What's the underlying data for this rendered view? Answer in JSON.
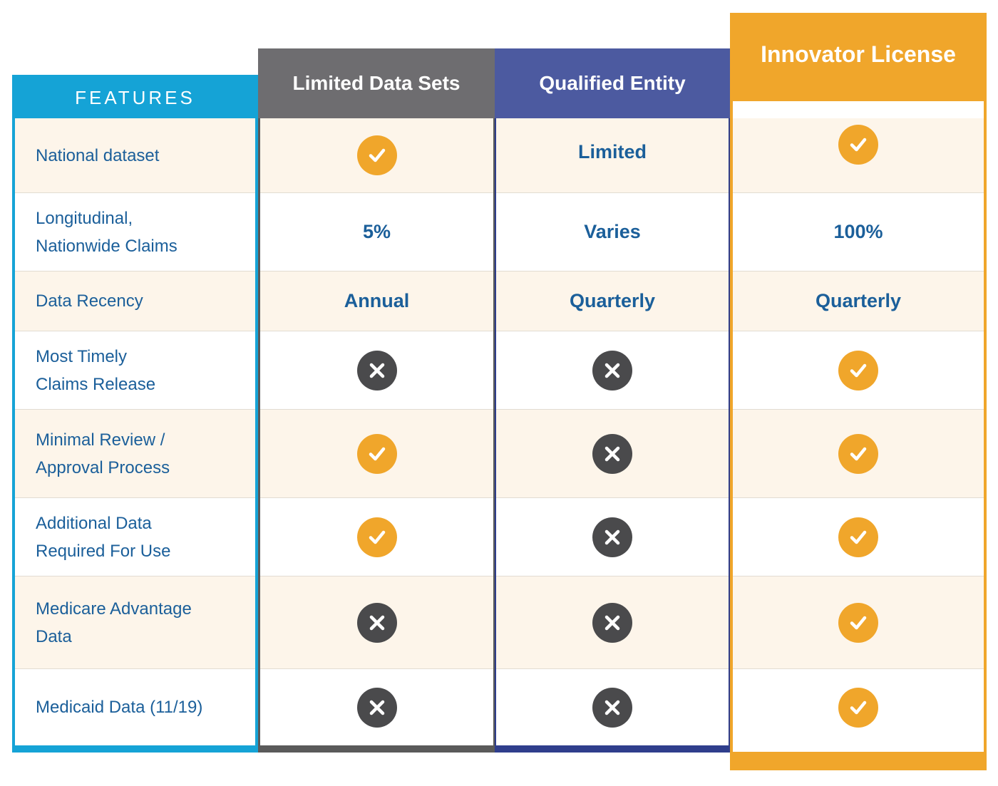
{
  "columns": {
    "features": "FEATURES",
    "limited_data_sets": "Limited Data Sets",
    "qualified_entity": "Qualified Entity",
    "innovator_license": "Innovator License"
  },
  "rows": [
    {
      "feature": "National dataset",
      "lds": "check",
      "qe": "Limited",
      "il": "check"
    },
    {
      "feature": "Longitudinal,\nNationwide Claims",
      "lds": "5%",
      "qe": "Varies",
      "il": "100%"
    },
    {
      "feature": "Data Recency",
      "lds": "Annual",
      "qe": "Quarterly",
      "il": "Quarterly"
    },
    {
      "feature": "Most Timely\nClaims Release",
      "lds": "cross",
      "qe": "cross",
      "il": "check"
    },
    {
      "feature": "Minimal Review /\nApproval Process",
      "lds": "check",
      "qe": "cross",
      "il": "check"
    },
    {
      "feature": "Additional Data\nRequired For Use",
      "lds": "check",
      "qe": "cross",
      "il": "check"
    },
    {
      "feature": "Medicare Advantage\nData",
      "lds": "cross",
      "qe": "cross",
      "il": "check"
    },
    {
      "feature": "Medicaid Data (11/19)",
      "lds": "cross",
      "qe": "cross",
      "il": "check"
    }
  ],
  "icons": {
    "check": "check-icon",
    "cross": "cross-icon"
  },
  "colors": {
    "features_blue": "#15a3d6",
    "lds_gray": "#6e6d70",
    "qe_indigo": "#4c5aa0",
    "il_orange": "#f0a62b",
    "text_blue": "#1b5f9a",
    "row_cream": "#fdf5ea"
  }
}
